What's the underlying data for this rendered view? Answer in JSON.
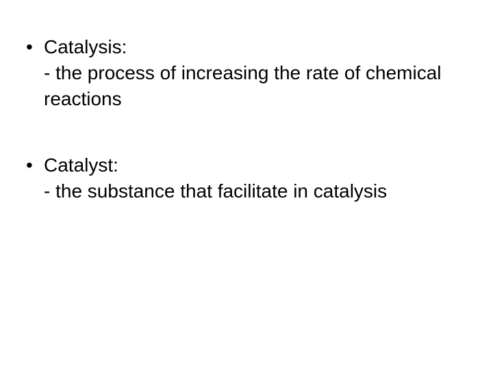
{
  "slide": {
    "background_color": "#ffffff",
    "text_color": "#000000",
    "font_family": "Arial",
    "body_fontsize_pt": 28,
    "bullets": [
      {
        "term": "Catalysis:",
        "definition": "- the process of increasing the rate of chemical reactions"
      },
      {
        "term": "Catalyst:",
        "definition": "- the substance that facilitate in catalysis"
      }
    ]
  }
}
